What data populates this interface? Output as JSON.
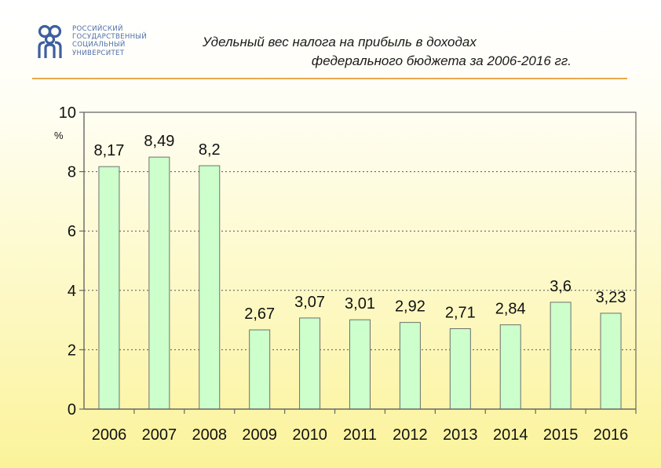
{
  "logo": {
    "lines": [
      "РОССИЙСКИЙ",
      "ГОСУДАРСТВЕННЫЙ",
      "СОЦИАЛЬНЫЙ",
      "УНИВЕРСИТЕТ"
    ],
    "colors": {
      "primary": "#3d5fa0",
      "text": "#4f6ea8"
    }
  },
  "header": {
    "title_line1": "Удельный вес налога на прибыль в доходах",
    "title_line2": "федерального бюджета за 2006-2016 гг.",
    "rule_color": "#e8a94a"
  },
  "chart_data": {
    "type": "bar",
    "title": "Удельный вес налога на прибыль в доходах федерального бюджета за 2006-2016 гг.",
    "unit_label": "%",
    "categories": [
      "2006",
      "2007",
      "2008",
      "2009",
      "2010",
      "2011",
      "2012",
      "2013",
      "2014",
      "2015",
      "2016"
    ],
    "values": [
      8.17,
      8.49,
      8.2,
      2.67,
      3.07,
      3.01,
      2.92,
      2.71,
      2.84,
      3.6,
      3.23
    ],
    "value_labels": [
      "8,17",
      "8,49",
      "8,2",
      "2,67",
      "3,07",
      "3,01",
      "2,92",
      "2,71",
      "2,84",
      "3,6",
      "3,23"
    ],
    "ylim": [
      0,
      10
    ],
    "yticks": [
      "0",
      "2",
      "4",
      "6",
      "8",
      "10"
    ],
    "grid": true,
    "legend": "none",
    "colors": {
      "bar_fill": "#ccffcc",
      "bar_stroke": "#6f6f6f",
      "grid": "#555555",
      "axis": "#666666"
    }
  }
}
